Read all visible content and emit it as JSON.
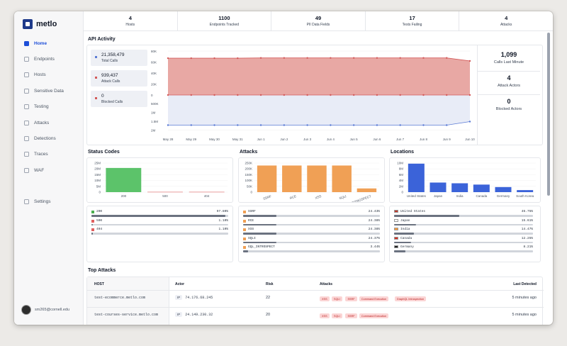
{
  "app": {
    "logo": "metlo"
  },
  "sidebar": {
    "items": [
      {
        "label": "Home",
        "icon": "home-icon"
      },
      {
        "label": "Endpoints",
        "icon": "endpoints-icon"
      },
      {
        "label": "Hosts",
        "icon": "hosts-icon"
      },
      {
        "label": "Sensitive Data",
        "icon": "lock-icon"
      },
      {
        "label": "Testing",
        "icon": "testing-icon"
      },
      {
        "label": "Attacks",
        "icon": "shield-icon"
      },
      {
        "label": "Detections",
        "icon": "detections-icon"
      },
      {
        "label": "Traces",
        "icon": "traces-icon"
      },
      {
        "label": "WAF",
        "icon": "waf-icon"
      },
      {
        "label": "Settings",
        "icon": "gear-icon"
      }
    ],
    "user_email": "sm265@cornell.edu"
  },
  "stats": [
    {
      "value": "4",
      "label": "Hosts"
    },
    {
      "value": "1100",
      "label": "Endpoints Tracked"
    },
    {
      "value": "49",
      "label": "PII Data Fields"
    },
    {
      "value": "17",
      "label": "Tests Failing"
    },
    {
      "value": "4",
      "label": "Attacks"
    }
  ],
  "activity": {
    "title": "API Activity",
    "legend": [
      {
        "value": "21,358,479",
        "label": "Total Calls",
        "color": "#5b7bd5"
      },
      {
        "value": "939,437",
        "label": "Attack Calls",
        "color": "#d35a5a"
      },
      {
        "value": "0",
        "label": "Blocked Calls",
        "color": "#d35a5a"
      }
    ],
    "side": [
      {
        "value": "1,099",
        "label": "Calls Last Minute"
      },
      {
        "value": "4",
        "label": "Attack Actors"
      },
      {
        "value": "0",
        "label": "Blocked Actors"
      }
    ],
    "top_ticks": [
      "80K",
      "60K",
      "40K",
      "20K",
      "0"
    ],
    "bottom_ticks": [
      "500K",
      "1M",
      "1.5M",
      "2M"
    ],
    "x_ticks": [
      "May 28",
      "May 29",
      "May 30",
      "May 31",
      "Jun 1",
      "Jun 2",
      "Jun 3",
      "Jun 4",
      "Jun 5",
      "Jun 6",
      "Jun 7",
      "Jun 8",
      "Jun 9",
      "Jun 10"
    ]
  },
  "status_codes": {
    "title": "Status Codes",
    "y_ticks": [
      "25M",
      "20M",
      "15M",
      "10M",
      "5M",
      "0"
    ],
    "rows": [
      {
        "name": "200",
        "pct": "97.80%",
        "color": "#4caf50",
        "frac": 0.978
      },
      {
        "name": "500",
        "pct": "1.10%",
        "color": "#e06060",
        "frac": 0.011
      },
      {
        "name": "404",
        "pct": "1.10%",
        "color": "#e06060",
        "frac": 0.011
      }
    ]
  },
  "attacks": {
    "title": "Attacks",
    "y_ticks": [
      "250K",
      "200K",
      "150K",
      "100K",
      "50K",
      "0"
    ],
    "rows": [
      {
        "name": "SSRF",
        "pct": "24.43%",
        "frac": 0.2443
      },
      {
        "name": "RCE",
        "pct": "24.38%",
        "frac": 0.2438
      },
      {
        "name": "XSS",
        "pct": "24.38%",
        "frac": 0.2438
      },
      {
        "name": "SQLI",
        "pct": "24.37%",
        "frac": 0.2437
      },
      {
        "name": "GQL_INTROSPECT",
        "pct": "3.44%",
        "frac": 0.0344
      }
    ]
  },
  "locations": {
    "title": "Locations",
    "y_ticks": [
      "10M",
      "8M",
      "6M",
      "4M",
      "2M",
      "0"
    ],
    "rows": [
      {
        "name": "United States",
        "pct": "46.75%",
        "frac": 0.4675
      },
      {
        "name": "Japan",
        "pct": "15.61%",
        "frac": 0.1561
      },
      {
        "name": "India",
        "pct": "14.47%",
        "frac": 0.1447
      },
      {
        "name": "Canada",
        "pct": "12.25%",
        "frac": 0.1225
      },
      {
        "name": "Germany",
        "pct": "8.21%",
        "frac": 0.0821
      }
    ],
    "extra_labels": [
      "South Korea"
    ]
  },
  "top_attacks": {
    "title": "Top Attacks",
    "headers": {
      "host": "HOST",
      "actor": "Actor",
      "risk": "Risk",
      "attacks": "Attacks",
      "last": "Last Detected"
    },
    "hosts": [
      "test-ecommerce.metlo.com",
      "test-courses-service.metlo.com"
    ],
    "rows": [
      {
        "actor": "74.176.68.245",
        "risk": "22",
        "tags": [
          "XSS",
          "SQLI",
          "SSRF",
          "Command Execution",
          "GraphQL Introspection"
        ],
        "last": "5 minutes ago"
      },
      {
        "actor": "24.149.230.32",
        "risk": "20",
        "tags": [
          "XSS",
          "SQLI",
          "SSRF",
          "Command Execution"
        ],
        "last": "5 minutes ago"
      }
    ],
    "ip_label": "IP"
  },
  "chart_data": [
    {
      "type": "area",
      "title": "API Activity",
      "x": [
        "May 28",
        "May 29",
        "May 30",
        "May 31",
        "Jun 1",
        "Jun 2",
        "Jun 3",
        "Jun 4",
        "Jun 5",
        "Jun 6",
        "Jun 7",
        "Jun 8",
        "Jun 9",
        "Jun 10"
      ],
      "series": [
        {
          "name": "Attack Calls",
          "values": [
            67000,
            67000,
            67000,
            67000,
            67500,
            67500,
            67500,
            67500,
            67500,
            67500,
            67500,
            67500,
            67500,
            62000
          ]
        },
        {
          "name": "Total Calls",
          "values": [
            1700000,
            1700000,
            1700000,
            1700000,
            1700000,
            1700000,
            1700000,
            1700000,
            1700000,
            1700000,
            1700000,
            1700000,
            1700000,
            1500000
          ]
        }
      ]
    },
    {
      "type": "bar",
      "title": "Status Codes",
      "categories": [
        "200",
        "500",
        "404"
      ],
      "values": [
        20800000,
        230000,
        230000
      ],
      "ylim": [
        0,
        25000000
      ]
    },
    {
      "type": "bar",
      "title": "Attacks",
      "categories": [
        "SSRF",
        "RCE",
        "XSS",
        "SQLI",
        "GQL_INTROSPECT"
      ],
      "values": [
        229000,
        229000,
        229000,
        229000,
        32000
      ],
      "ylim": [
        0,
        250000
      ]
    },
    {
      "type": "bar",
      "title": "Locations",
      "categories": [
        "United States",
        "Japan",
        "India",
        "Canada",
        "Germany",
        "South Korea"
      ],
      "values": [
        9800000,
        3300000,
        3050000,
        2600000,
        1750000,
        700000
      ],
      "ylim": [
        0,
        10000000
      ]
    }
  ]
}
